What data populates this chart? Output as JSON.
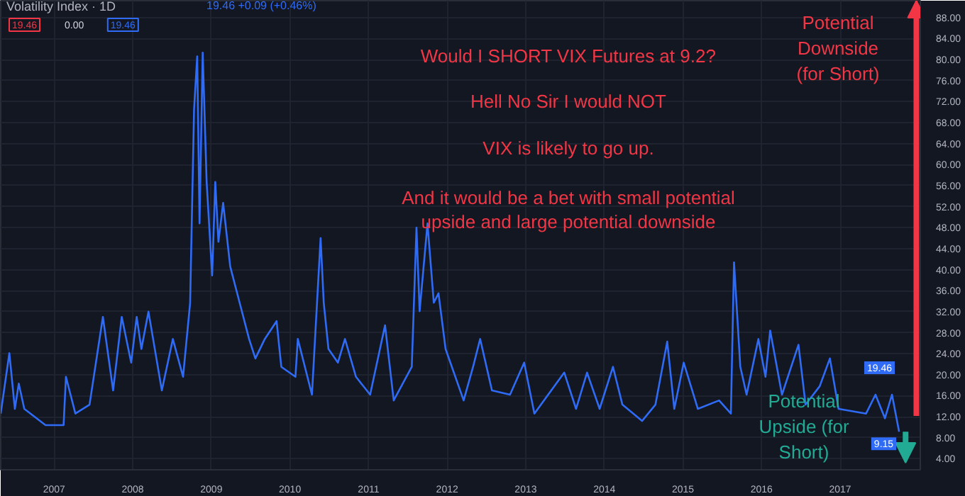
{
  "chart_data": {
    "type": "line",
    "title": "Volatility Index · 1D",
    "subtitle": "19.46 +0.09 (+0.46%)",
    "x": [
      2006.32,
      2006.43,
      2006.5,
      2006.55,
      2006.62,
      2006.89,
      2007.12,
      2007.15,
      2007.27,
      2007.45,
      2007.62,
      2007.75,
      2007.86,
      2007.98,
      2008.05,
      2008.11,
      2008.2,
      2008.37,
      2008.51,
      2008.64,
      2008.73,
      2008.78,
      2008.82,
      2008.85,
      2008.89,
      2008.94,
      2009.01,
      2009.05,
      2009.09,
      2009.15,
      2009.24,
      2009.36,
      2009.48,
      2009.56,
      2009.68,
      2009.83,
      2009.89,
      2010.07,
      2010.1,
      2010.28,
      2010.39,
      2010.43,
      2010.49,
      2010.61,
      2010.7,
      2010.84,
      2011.02,
      2011.21,
      2011.32,
      2011.55,
      2011.61,
      2011.65,
      2011.75,
      2011.83,
      2011.89,
      2011.98,
      2012.21,
      2012.33,
      2012.42,
      2012.57,
      2012.8,
      2012.98,
      2013.11,
      2013.49,
      2013.64,
      2013.78,
      2013.94,
      2014.11,
      2014.23,
      2014.48,
      2014.65,
      2014.8,
      2014.89,
      2015.01,
      2015.19,
      2015.46,
      2015.61,
      2015.65,
      2015.73,
      2015.81,
      2015.96,
      2016.05,
      2016.11,
      2016.26,
      2016.47,
      2016.56,
      2016.74,
      2016.87,
      2016.98,
      2017.33,
      2017.45,
      2017.57,
      2017.66,
      2017.75
    ],
    "series": [
      {
        "color": "#2f6bf5",
        "values": [
          12.6,
          24.1,
          13.5,
          18.3,
          13.5,
          10.4,
          10.4,
          19.6,
          12.6,
          14.3,
          31.0,
          17.0,
          31.0,
          22.3,
          31.0,
          24.9,
          32.0,
          17.0,
          26.8,
          19.6,
          33.7,
          70.5,
          80.6,
          48.8,
          81.3,
          56.7,
          38.9,
          56.7,
          45.3,
          52.7,
          40.6,
          33.7,
          26.8,
          23.1,
          26.8,
          30.2,
          21.5,
          19.6,
          26.8,
          16.2,
          46.0,
          33.7,
          24.9,
          22.3,
          26.8,
          19.6,
          16.2,
          29.4,
          15.1,
          21.5,
          48.0,
          32.1,
          48.8,
          33.7,
          35.5,
          24.9,
          15.1,
          21.5,
          26.8,
          17.0,
          16.2,
          22.3,
          12.6,
          20.4,
          13.5,
          20.4,
          13.5,
          21.5,
          14.3,
          11.2,
          14.3,
          26.3,
          13.5,
          22.3,
          13.5,
          15.1,
          12.6,
          41.4,
          21.5,
          16.2,
          26.8,
          19.6,
          28.4,
          16.2,
          25.7,
          14.3,
          17.8,
          23.1,
          13.5,
          12.6,
          16.2,
          11.7,
          16.2,
          9.15
        ]
      }
    ],
    "xlim": [
      2006.32,
      2018.02
    ],
    "xticks": [
      2007,
      2008,
      2009,
      2010,
      2011,
      2012,
      2013,
      2014,
      2015,
      2016,
      2017
    ],
    "ylim": [
      1.9,
      91.2
    ],
    "yticks": [
      {
        "value": 4,
        "label": "4.00"
      },
      {
        "value": 8,
        "label": "8.00"
      },
      {
        "value": 12,
        "label": "12.00"
      },
      {
        "value": 16,
        "label": "16.00"
      },
      {
        "value": 20,
        "label": "20.00"
      },
      {
        "value": 24,
        "label": "24.00"
      },
      {
        "value": 28,
        "label": "28.00"
      },
      {
        "value": 32,
        "label": "32.00"
      },
      {
        "value": 36,
        "label": "36.00"
      },
      {
        "value": 40,
        "label": "40.00"
      },
      {
        "value": 44,
        "label": "44.00"
      },
      {
        "value": 48,
        "label": "48.00"
      },
      {
        "value": 52,
        "label": "52.00"
      },
      {
        "value": 56,
        "label": "56.00"
      },
      {
        "value": 60,
        "label": "60.00"
      },
      {
        "value": 64,
        "label": "64.00"
      },
      {
        "value": 68,
        "label": "68.00"
      },
      {
        "value": 72,
        "label": "72.00"
      },
      {
        "value": 76,
        "label": "76.00"
      },
      {
        "value": 80,
        "label": "80.00"
      },
      {
        "value": 84,
        "label": "84.00"
      },
      {
        "value": 88,
        "label": "88.00"
      }
    ],
    "grid": true,
    "ref_lines": [
      {
        "axis": "x",
        "value": 2017.97,
        "label": "Potential Downside (for Short)",
        "color": "#f23645"
      }
    ],
    "annotations": [
      "19.46",
      "0.00",
      "19.46",
      "Would I SHORT VIX Futures at 9.2?",
      "Hell No Sir I would NOT",
      "VIX is likely to go up.",
      "And it would be a bet with small potential",
      "upside and large potential downside",
      "Potential Upside (for Short)",
      "19.46",
      {
        "text": "9.15",
        "x": 2017.75,
        "y": 9.15
      }
    ]
  }
}
